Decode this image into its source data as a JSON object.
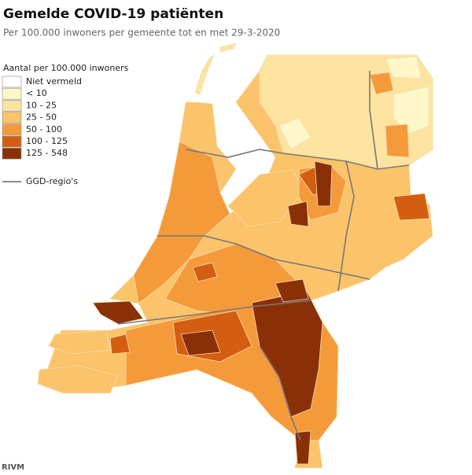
{
  "header": {
    "title": "Gemelde COVID-19 patiënten",
    "subtitle": "Per 100.000 inwoners per gemeente tot en met 29-3-2020"
  },
  "legend": {
    "title": "Aantal per 100.000 inwoners",
    "items": [
      {
        "label": "Niet vermeld",
        "color": "#ffffff"
      },
      {
        "label": "< 10",
        "color": "#fef7c9"
      },
      {
        "label": "10 - 25",
        "color": "#fde3a0"
      },
      {
        "label": "25 - 50",
        "color": "#fbc36a"
      },
      {
        "label": "50 - 100",
        "color": "#f49a3a"
      },
      {
        "label": "100 - 125",
        "color": "#d35e12"
      },
      {
        "label": "125 - 548",
        "color": "#8a3009"
      }
    ],
    "boundary": {
      "label": "GGD-regio's",
      "color": "#666666"
    }
  },
  "source": "RIVM"
}
